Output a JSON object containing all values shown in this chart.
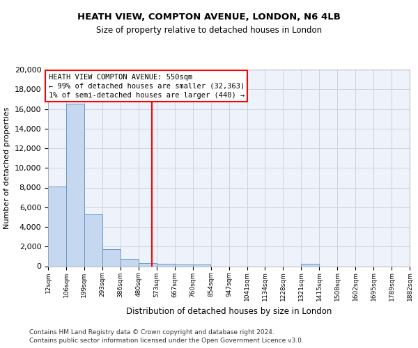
{
  "title_line1": "HEATH VIEW, COMPTON AVENUE, LONDON, N6 4LB",
  "title_line2": "Size of property relative to detached houses in London",
  "xlabel": "Distribution of detached houses by size in London",
  "ylabel": "Number of detached properties",
  "footer_line1": "Contains HM Land Registry data © Crown copyright and database right 2024.",
  "footer_line2": "Contains public sector information licensed under the Open Government Licence v3.0.",
  "annotation_line1": "HEATH VIEW COMPTON AVENUE: 550sqm",
  "annotation_line2": "← 99% of detached houses are smaller (32,363)",
  "annotation_line3": "1% of semi-detached houses are larger (440) →",
  "bar_color": "#c5d8f0",
  "bar_edge_color": "#6699cc",
  "bar_left_edges": [
    12,
    106,
    199,
    293,
    386,
    480,
    573,
    667,
    760,
    854,
    947,
    1041,
    1134,
    1228,
    1321,
    1415,
    1508,
    1602,
    1695,
    1789
  ],
  "bar_heights": [
    8100,
    16500,
    5300,
    1750,
    750,
    330,
    280,
    200,
    160,
    0,
    0,
    0,
    0,
    0,
    230,
    0,
    0,
    0,
    0,
    0
  ],
  "bin_width": 93,
  "red_line_x": 550,
  "ylim": [
    0,
    20000
  ],
  "yticks": [
    0,
    2000,
    4000,
    6000,
    8000,
    10000,
    12000,
    14000,
    16000,
    18000,
    20000
  ],
  "xtick_labels": [
    "12sqm",
    "106sqm",
    "199sqm",
    "293sqm",
    "386sqm",
    "480sqm",
    "573sqm",
    "667sqm",
    "760sqm",
    "854sqm",
    "947sqm",
    "1041sqm",
    "1134sqm",
    "1228sqm",
    "1321sqm",
    "1415sqm",
    "1508sqm",
    "1602sqm",
    "1695sqm",
    "1789sqm",
    "1882sqm"
  ],
  "background_color": "#eef2fb",
  "grid_color": "#c8cedc",
  "fig_background": "#ffffff",
  "title_fontsize": 9.5,
  "subtitle_fontsize": 8.5,
  "ylabel_fontsize": 8,
  "xlabel_fontsize": 8.5,
  "ytick_fontsize": 8,
  "xtick_fontsize": 6.5,
  "annotation_fontsize": 7.5,
  "footer_fontsize": 6.5
}
